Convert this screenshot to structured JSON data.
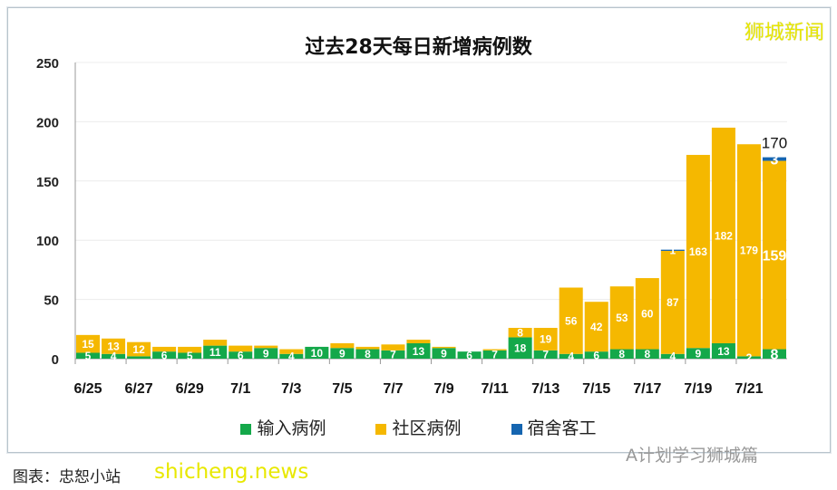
{
  "brand": "狮城新闻",
  "watermark": "A计划学习狮城篇",
  "site": "shicheng.news",
  "source": "图表：忠恕小站",
  "chart_data": {
    "type": "bar",
    "stacked": true,
    "title": "过去28天每日新增病例数",
    "ylim": [
      0,
      250
    ],
    "yticks": [
      0,
      50,
      100,
      150,
      200,
      250
    ],
    "grid": true,
    "legend_position": "bottom",
    "categories": [
      "6/25",
      "6/26",
      "6/27",
      "6/28",
      "6/29",
      "6/30",
      "7/1",
      "7/2",
      "7/3",
      "7/4",
      "7/5",
      "7/6",
      "7/7",
      "7/8",
      "7/9",
      "7/10",
      "7/11",
      "7/12",
      "7/13",
      "7/14",
      "7/15",
      "7/16",
      "7/17",
      "7/18",
      "7/19",
      "7/20",
      "7/21",
      "7/22"
    ],
    "xtick_labels": [
      "6/25",
      "6/27",
      "6/29",
      "7/1",
      "7/3",
      "7/5",
      "7/7",
      "7/9",
      "7/11",
      "7/13",
      "7/15",
      "7/17",
      "7/19",
      "7/21"
    ],
    "series": [
      {
        "name": "输入病例",
        "color": "#14a84a",
        "values": [
          5,
          4,
          2,
          6,
          5,
          11,
          6,
          9,
          4,
          10,
          9,
          8,
          7,
          13,
          9,
          6,
          7,
          18,
          7,
          4,
          6,
          8,
          8,
          4,
          9,
          13,
          2,
          8
        ]
      },
      {
        "name": "社区病例",
        "color": "#f5b800",
        "values": [
          15,
          13,
          12,
          4,
          5,
          5,
          5,
          2,
          4,
          0,
          4,
          2,
          5,
          3,
          1,
          0,
          1,
          8,
          19,
          56,
          42,
          53,
          60,
          87,
          163,
          182,
          179,
          159
        ]
      },
      {
        "name": "宿舍客工",
        "color": "#1565b0",
        "values": [
          0,
          0,
          0,
          0,
          0,
          0,
          0,
          0,
          0,
          0,
          0,
          0,
          0,
          0,
          0,
          0,
          0,
          0,
          0,
          0,
          0,
          0,
          0,
          1,
          0,
          0,
          0,
          3
        ]
      }
    ],
    "annotations": [
      {
        "category": "7/22",
        "text": "170"
      }
    ]
  }
}
